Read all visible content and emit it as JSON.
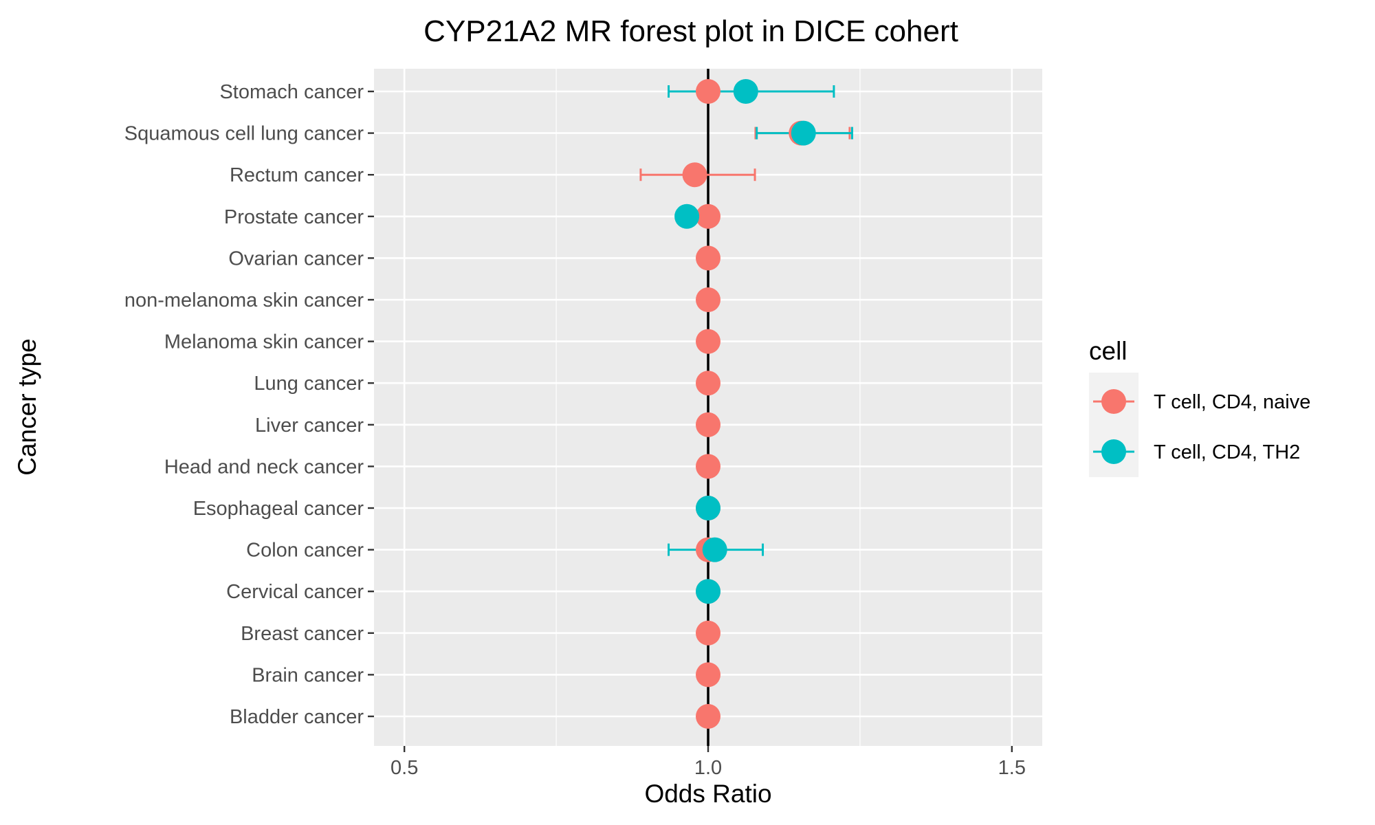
{
  "chart_data": {
    "type": "forest",
    "title": "CYP21A2 MR forest plot in DICE cohert",
    "xlabel": "Odds Ratio",
    "ylabel": "Cancer type",
    "xlim": [
      0.45,
      1.55
    ],
    "xticks": [
      "0.5",
      "1.0",
      "1.5"
    ],
    "xtick_values": [
      0.5,
      1.0,
      1.5
    ],
    "reference_line": 1.0,
    "grid": true,
    "legend_position": "right",
    "categories": [
      "Stomach cancer",
      "Squamous cell lung cancer",
      "Rectum cancer",
      "Prostate cancer",
      "Ovarian cancer",
      "non-melanoma skin cancer",
      "Melanoma skin cancer",
      "Lung cancer",
      "Liver cancer",
      "Head and neck cancer",
      "Esophageal cancer",
      "Colon cancer",
      "Cervical cancer",
      "Breast cancer",
      "Brain cancer",
      "Bladder cancer"
    ],
    "legend": {
      "title": "cell",
      "entries": [
        {
          "name": "T cell, CD4, naive",
          "color": "#F8766D"
        },
        {
          "name": "T cell, CD4, TH2",
          "color": "#00BFC4"
        }
      ]
    },
    "series": [
      {
        "name": "T cell, CD4, naive",
        "color": "#F8766D",
        "points": [
          {
            "category": "Stomach cancer",
            "or": 1.0,
            "lower": 1.0,
            "upper": 1.0
          },
          {
            "category": "Squamous cell lung cancer",
            "or": 1.153,
            "lower": 1.078,
            "upper": 1.233
          },
          {
            "category": "Rectum cancer",
            "or": 0.978,
            "lower": 0.889,
            "upper": 1.077
          },
          {
            "category": "Prostate cancer",
            "or": 1.0,
            "lower": 1.0,
            "upper": 1.0
          },
          {
            "category": "Ovarian cancer",
            "or": 1.0,
            "lower": 1.0,
            "upper": 1.0
          },
          {
            "category": "non-melanoma skin cancer",
            "or": 1.0,
            "lower": 1.0,
            "upper": 1.0
          },
          {
            "category": "Melanoma skin cancer",
            "or": 1.0,
            "lower": 1.0,
            "upper": 1.0
          },
          {
            "category": "Lung cancer",
            "or": 1.0,
            "lower": 1.0,
            "upper": 1.0
          },
          {
            "category": "Liver cancer",
            "or": 1.0,
            "lower": 1.0,
            "upper": 1.0
          },
          {
            "category": "Head and neck cancer",
            "or": 1.0,
            "lower": 1.0,
            "upper": 1.0
          },
          {
            "category": "Esophageal cancer",
            "or": 1.0,
            "lower": 1.0,
            "upper": 1.0
          },
          {
            "category": "Colon cancer",
            "or": 1.0,
            "lower": 1.0,
            "upper": 1.0
          },
          {
            "category": "Cervical cancer",
            "or": 1.0,
            "lower": 1.0,
            "upper": 1.0
          },
          {
            "category": "Breast cancer",
            "or": 1.0,
            "lower": 1.0,
            "upper": 1.0
          },
          {
            "category": "Brain cancer",
            "or": 1.0,
            "lower": 1.0,
            "upper": 1.0
          },
          {
            "category": "Bladder cancer",
            "or": 1.0,
            "lower": 1.0,
            "upper": 1.0
          }
        ]
      },
      {
        "name": "T cell, CD4, TH2",
        "color": "#00BFC4",
        "points": [
          {
            "category": "Stomach cancer",
            "or": 1.062,
            "lower": 0.935,
            "upper": 1.207
          },
          {
            "category": "Squamous cell lung cancer",
            "or": 1.157,
            "lower": 1.08,
            "upper": 1.237
          },
          {
            "category": "Prostate cancer",
            "or": 0.965,
            "lower": 0.96,
            "upper": 0.97
          },
          {
            "category": "Esophageal cancer",
            "or": 1.0,
            "lower": 1.0,
            "upper": 1.0
          },
          {
            "category": "Colon cancer",
            "or": 1.011,
            "lower": 0.935,
            "upper": 1.09
          },
          {
            "category": "Cervical cancer",
            "or": 1.0,
            "lower": 1.0,
            "upper": 1.0
          }
        ]
      }
    ]
  }
}
